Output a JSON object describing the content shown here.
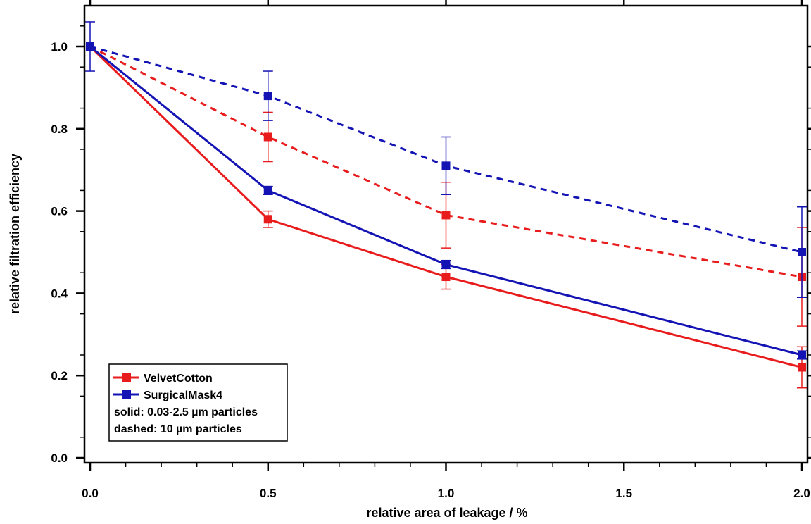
{
  "chart_data": {
    "type": "line",
    "title": "",
    "xlabel": "relative area of leakage / %",
    "ylabel": "relative filtration efficiency",
    "xlim": [
      0.0,
      2.0
    ],
    "ylim": [
      0.0,
      1.0
    ],
    "x_ticks": [
      "0.0",
      "0.5",
      "1.0",
      "1.5",
      "2.0"
    ],
    "y_ticks": [
      "0.0",
      "0.2",
      "0.4",
      "0.6",
      "0.8",
      "1.0"
    ],
    "grid": false,
    "legend_position": "bottom-left",
    "series": [
      {
        "name": "VelvetCotton",
        "color": "#e81c1c",
        "style": "solid",
        "x": [
          0.0,
          0.5,
          1.0,
          2.0
        ],
        "y": [
          1.0,
          0.58,
          0.44,
          0.22
        ],
        "err": [
          0.0,
          0.02,
          0.03,
          0.05
        ]
      },
      {
        "name": "SurgicalMask4",
        "color": "#1414b4",
        "style": "solid",
        "x": [
          0.0,
          0.5,
          1.0,
          2.0
        ],
        "y": [
          1.0,
          0.65,
          0.47,
          0.25
        ],
        "err": [
          0.06,
          0.01,
          0.01,
          0.01
        ]
      },
      {
        "color": "#e81c1c",
        "style": "dashed",
        "x": [
          0.0,
          0.5,
          1.0,
          2.0
        ],
        "y": [
          1.0,
          0.78,
          0.59,
          0.44
        ],
        "err": [
          0.0,
          0.06,
          0.08,
          0.12
        ]
      },
      {
        "color": "#1414b4",
        "style": "dashed",
        "x": [
          0.0,
          0.5,
          1.0,
          2.0
        ],
        "y": [
          1.0,
          0.88,
          0.71,
          0.5
        ],
        "err": [
          0.0,
          0.06,
          0.07,
          0.11
        ]
      }
    ],
    "legend": {
      "entries": [
        {
          "label": "VelvetCotton",
          "color": "#e81c1c"
        },
        {
          "label": "SurgicalMask4",
          "color": "#1414b4"
        }
      ],
      "notes": [
        "solid: 0.03-2.5 µm particles",
        "dashed: 10 µm particles"
      ]
    }
  }
}
